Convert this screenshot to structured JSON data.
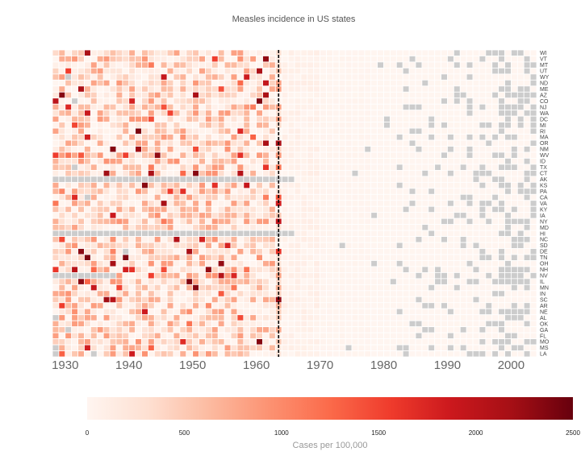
{
  "chart_data": {
    "type": "heatmap",
    "title": "Measles incidence in US states",
    "x_start": 1928,
    "x_end": 2003,
    "x_ticks": [
      1930,
      1940,
      1950,
      1960,
      1970,
      1980,
      1990,
      2000
    ],
    "vaccine_year": 1963,
    "states": [
      "WI",
      "VT",
      "MT",
      "UT",
      "WY",
      "ND",
      "ME",
      "AZ",
      "CO",
      "NJ",
      "WA",
      "DC",
      "MI",
      "RI",
      "MA",
      "OR",
      "NM",
      "WV",
      "ID",
      "TX",
      "CT",
      "AK",
      "KS",
      "PA",
      "CA",
      "VA",
      "KY",
      "IA",
      "NY",
      "MD",
      "HI",
      "NC",
      "SD",
      "DE",
      "TN",
      "OH",
      "NH",
      "NV",
      "IL",
      "MN",
      "IN",
      "SC",
      "AR",
      "NE",
      "AL",
      "OK",
      "GA",
      "FL",
      "MO",
      "MS",
      "LA"
    ],
    "colorbar": {
      "min": 0,
      "max": 2500,
      "ticks": [
        0,
        500,
        1000,
        1500,
        2000,
        2500
      ],
      "label": "Cases per 100,000",
      "colors": [
        "#fff5f0",
        "#fee0d2",
        "#fcbba1",
        "#fc9272",
        "#fb6a4a",
        "#ef3b2c",
        "#cb181d",
        "#a50f15",
        "#67000d"
      ]
    },
    "missing_color": "#cccccc"
  }
}
